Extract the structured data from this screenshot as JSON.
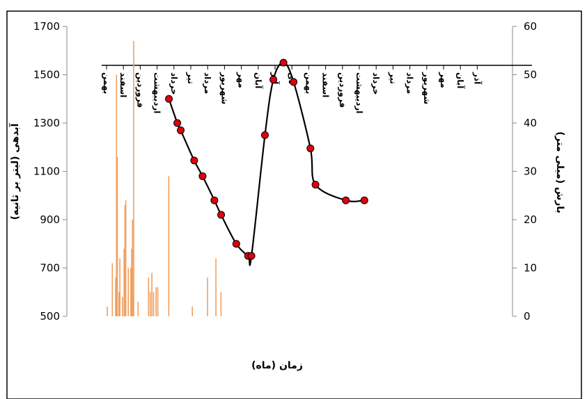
{
  "chart_data": {
    "type": "line",
    "xlabel": "زمان (ماه)",
    "ylabel": "آبدهی (لیتر بر ثانیه)",
    "y2label": "بارش (میلی متر)",
    "ylim": [
      500,
      1700
    ],
    "y_ticks": [
      500,
      700,
      900,
      1100,
      1300,
      1500,
      1700
    ],
    "y2lim": [
      0,
      60
    ],
    "y2_ticks": [
      0,
      10,
      20,
      30,
      40,
      50,
      60
    ],
    "month_labels": [
      "بهمن",
      "اسفند",
      "فروردین",
      "اردیبهشت",
      "خرداد",
      "تیر",
      "مرداد",
      "شهریور",
      "مهر",
      "آبان",
      "آذر",
      "دی",
      "بهمن",
      "اسفند",
      "فروردین",
      "اردیبهشت",
      "خرداد",
      "تیر",
      "مرداد",
      "شهریور",
      "مهر",
      "آبان",
      "آذر"
    ],
    "series": [
      {
        "type": "line",
        "axis": "left",
        "color": "#000000",
        "marker_color": "#e0000f",
        "x": [
          3.7,
          4.2,
          4.4,
          5.2,
          5.7,
          6.4,
          6.8,
          7.7,
          8.4,
          8.6,
          9.4,
          9.9,
          10.5,
          11.1,
          12.1,
          12.4,
          14.2,
          15.3
        ],
        "y": [
          1400,
          1300,
          1270,
          1145,
          1080,
          980,
          920,
          800,
          750,
          750,
          1250,
          1480,
          1550,
          1470,
          1195,
          1045,
          980,
          980
        ]
      },
      {
        "type": "bar",
        "axis": "right",
        "color": "#f0a060",
        "x": [
          0.05,
          0.35,
          0.55,
          0.6,
          0.65,
          0.75,
          0.8,
          0.95,
          1.05,
          1.1,
          1.15,
          1.3,
          1.45,
          1.5,
          1.52,
          1.55,
          1.6,
          1.62,
          1.88,
          2.5,
          2.6,
          2.7,
          2.8,
          2.95,
          3.05,
          3.2,
          3.7,
          5.1,
          6.0,
          6.5,
          6.8
        ],
        "values": [
          2,
          11,
          8,
          50,
          33,
          5,
          12,
          4,
          14,
          23,
          24,
          10,
          10,
          14,
          9,
          20,
          5,
          57,
          3,
          8,
          5,
          9,
          5,
          6,
          6,
          0,
          29,
          2,
          8,
          12,
          5
        ]
      }
    ]
  }
}
